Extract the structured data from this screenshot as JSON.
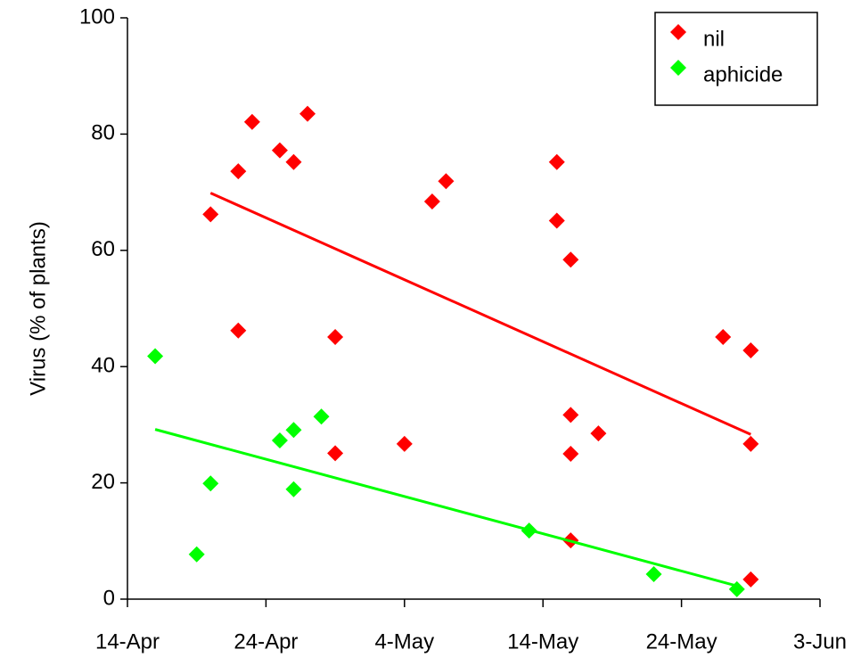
{
  "chart_data": {
    "type": "scatter",
    "y_label": "Virus (% of plants)",
    "xlim": [
      "14-Apr",
      "3-Jun"
    ],
    "xticks": [
      "14-Apr",
      "24-Apr",
      "4-May",
      "14-May",
      "24-May",
      "3-Jun"
    ],
    "ylim": [
      0,
      100
    ],
    "yticks": [
      0,
      20,
      40,
      60,
      80,
      100
    ],
    "legend": "top-right",
    "trendline": "linear",
    "series": [
      {
        "name": "nil",
        "color": "#ff0000",
        "x": [
          "20-Apr",
          "22-Apr",
          "23-Apr",
          "22-Apr",
          "25-Apr",
          "26-Apr",
          "27-Apr",
          "29-Apr",
          "29-Apr",
          "4-May",
          "6-May",
          "7-May",
          "15-May",
          "15-May",
          "16-May",
          "16-May",
          "16-May",
          "16-May",
          "18-May",
          "27-May",
          "29-May",
          "29-May",
          "29-May"
        ],
        "values": [
          66.2,
          73.6,
          82.1,
          46.2,
          77.2,
          75.2,
          83.5,
          45.1,
          25.1,
          26.7,
          68.4,
          71.9,
          75.2,
          65.1,
          58.4,
          31.7,
          25.0,
          10.1,
          28.5,
          45.1,
          42.8,
          26.7,
          3.4
        ]
      },
      {
        "name": "aphicide",
        "color": "#00ff00",
        "x": [
          "16-Apr",
          "19-Apr",
          "20-Apr",
          "25-Apr",
          "26-Apr",
          "26-Apr",
          "28-Apr",
          "13-May",
          "22-May",
          "28-May"
        ],
        "values": [
          41.8,
          7.7,
          19.9,
          27.3,
          29.1,
          18.9,
          31.4,
          11.8,
          4.3,
          1.7
        ]
      }
    ]
  }
}
